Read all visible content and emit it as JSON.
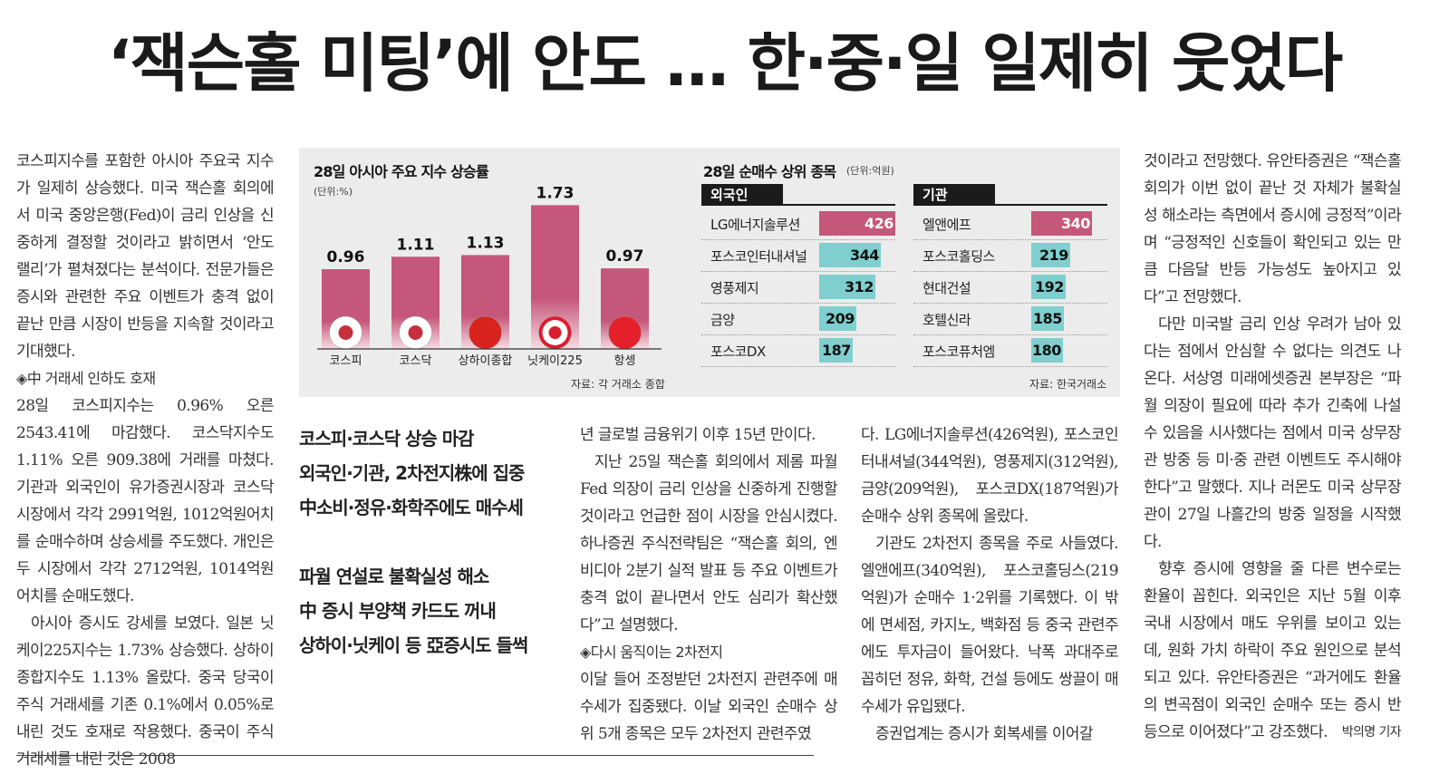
{
  "headline": "‘잭슨홀 미팅’에 안도 … 한·중·일 일제히 웃었다",
  "col1": {
    "p1": "코스피지수를 포함한 아시아 주요국 지수가 일제히 상승했다. 미국 잭슨홀 회의에서 미국 중앙은행(Fed)이 금리 인상을 신중하게 결정할 것이라고 밝히면서 ‘안도 랠리’가 펼쳐졌다는 분석이다. 전문가들은 증시와 관련한 주요 이벤트가 충격 없이 끝난 만큼 시장이 반등을 지속할 것이라고 기대했다.",
    "sub1": "◈中 거래세 인하도 호재",
    "p2": "28일 코스피지수는 0.96% 오른 2543.41에 마감했다. 코스닥지수도 1.11% 오른 909.38에 거래를 마쳤다. 기관과 외국인이 유가증권시장과 코스닥시장에서 각각 2991억원, 1012억원어치를 순매수하며 상승세를 주도했다. 개인은 두 시장에서 각각 2712억원, 1014억원어치를 순매도했다.",
    "p3": "아시아 증시도 강세를 보였다. 일본 닛케이225지수는 1.73% 상승했다. 상하이종합지수도 1.13% 올랐다. 중국 당국이 주식 거래세를 기존 0.1%에서 0.05%로 내린 것도 호재로 작용했다. 중국이 주식 거래세를 내린 것은 2008"
  },
  "graphic": {
    "chart1_title": "28일 아시아 주요 지수 상승률",
    "chart1_unit": "(단위:%)",
    "chart1_source": "자료: 각 거래소 종합",
    "chart2_title": "28일 순매수 상위 종목",
    "chart2_unit": "(단위:억원)",
    "chart2_source": "자료: 한국거래소",
    "foreign_label": "외국인",
    "inst_label": "기관",
    "foreign": [
      {
        "name": "LG에너지솔루션",
        "value": "426"
      },
      {
        "name": "포스코인터내셔널",
        "value": "344"
      },
      {
        "name": "영풍제지",
        "value": "312"
      },
      {
        "name": "금양",
        "value": "209"
      },
      {
        "name": "포스코DX",
        "value": "187"
      }
    ],
    "inst": [
      {
        "name": "엘앤에프",
        "value": "340"
      },
      {
        "name": "포스코홀딩스",
        "value": "219"
      },
      {
        "name": "현대건설",
        "value": "192"
      },
      {
        "name": "호텔신라",
        "value": "185"
      },
      {
        "name": "포스코퓨처엠",
        "value": "180"
      }
    ],
    "colors": {
      "pink": "#c5577a",
      "teal": "#7fcfcf",
      "dark": "#1b1b1b"
    }
  },
  "chart_data": [
    {
      "type": "bar",
      "title": "28일 아시아 주요 지수 상승률",
      "ylabel": "(단위:%)",
      "categories": [
        "코스피",
        "코스닥",
        "상하이종합",
        "닛케이225",
        "항셍"
      ],
      "values": [
        0.96,
        1.11,
        1.13,
        1.73,
        0.97
      ],
      "value_labels": [
        "0.96",
        "1.11",
        "1.13",
        "1.73",
        "0.97"
      ],
      "ylim": [
        0,
        1.8
      ]
    },
    {
      "type": "bar",
      "title": "28일 순매수 상위 종목",
      "series": [
        {
          "name": "외국인",
          "categories": [
            "LG에너지솔루션",
            "포스코인터내셔널",
            "영풍제지",
            "금양",
            "포스코DX"
          ],
          "values": [
            426,
            344,
            312,
            209,
            187
          ]
        },
        {
          "name": "기관",
          "categories": [
            "엘앤에프",
            "포스코홀딩스",
            "현대건설",
            "호텔신라",
            "포스코퓨처엠"
          ],
          "values": [
            340,
            219,
            192,
            185,
            180
          ]
        }
      ]
    }
  ],
  "pull": {
    "l1": "코스피·코스닥 상승 마감",
    "l2": "외국인·기관, 2차전지株에 집중",
    "l3": "中소비·정유·화학주에도 매수세",
    "l4": "파월 연설로 불확실성 해소",
    "l5": "中 증시 부양책 카드도 꺼내",
    "l6": "상하이·닛케이 등 亞증시도 들썩"
  },
  "col3": {
    "p1": "년 글로벌 금융위기 이후 15년 만이다.",
    "p2": "지난 25일 잭슨홀 회의에서 제롬 파월 Fed 의장이 금리 인상을 신중하게 진행할 것이라고 언급한 점이 시장을 안심시켰다. 하나증권 주식전략팀은 “잭슨홀 회의, 엔비디아 2분기 실적 발표 등 주요 이벤트가 충격 없이 끝나면서 안도 심리가 확산했다”고 설명했다.",
    "sub": "◈다시 움직이는 2차전지",
    "p3": "이달 들어 조정받던 2차전지 관련주에 매수세가 집중됐다. 이날 외국인 순매수 상위 5개 종목은 모두 2차전지 관련주였"
  },
  "col4": {
    "p1": "다. LG에너지솔루션(426억원), 포스코인터내셔널(344억원), 영풍제지(312억원), 금양(209억원), 포스코DX(187억원)가 순매수 상위 종목에 올랐다.",
    "p2": "기관도 2차전지 종목을 주로 사들였다. 엘앤에프(340억원), 포스코홀딩스(219억원)가 순매수 1·2위를 기록했다. 이 밖에 면세점, 카지노, 백화점 등 중국 관련주에도 투자금이 들어왔다. 낙폭 과대주로 꼽히던 정유, 화학, 건설 등에도 쌍끌이 매수세가 유입됐다.",
    "p3": "증권업계는 증시가 회복세를 이어갈"
  },
  "col5": {
    "p1": "것이라고 전망했다. 유안타증권은 “잭슨홀 회의가 이번 없이 끝난 것 자체가 불확실성 해소라는 측면에서 증시에 긍정적”이라며 “긍정적인 신호들이 확인되고 있는 만큼 다음달 반등 가능성도 높아지고 있다”고 전망했다.",
    "p2": "다만 미국발 금리 인상 우려가 남아 있다는 점에서 안심할 수 없다는 의견도 나온다. 서상영 미래에셋증권 본부장은 “파월 의장이 필요에 따라 추가 긴축에 나설 수 있음을 시사했다는 점에서 미국 상무장관 방중 등 미·중 관련 이벤트도 주시해야 한다”고 말했다. 지나 러몬도 미국 상무장관이 27일 나흘간의 방중 일정을 시작했다.",
    "p3": "향후 증시에 영향을 줄 다른 변수로는 환율이 꼽힌다. 외국인은 지난 5월 이후 국내 시장에서 매도 우위를 보이고 있는데, 원화 가치 하락이 주요 원인으로 분석되고 있다. 유안타증권은 “과거에도 환율의 변곡점이 외국인 순매수 또는 증시 반등으로 이어졌다”고 강조했다.",
    "byline": "박의명 기자"
  }
}
